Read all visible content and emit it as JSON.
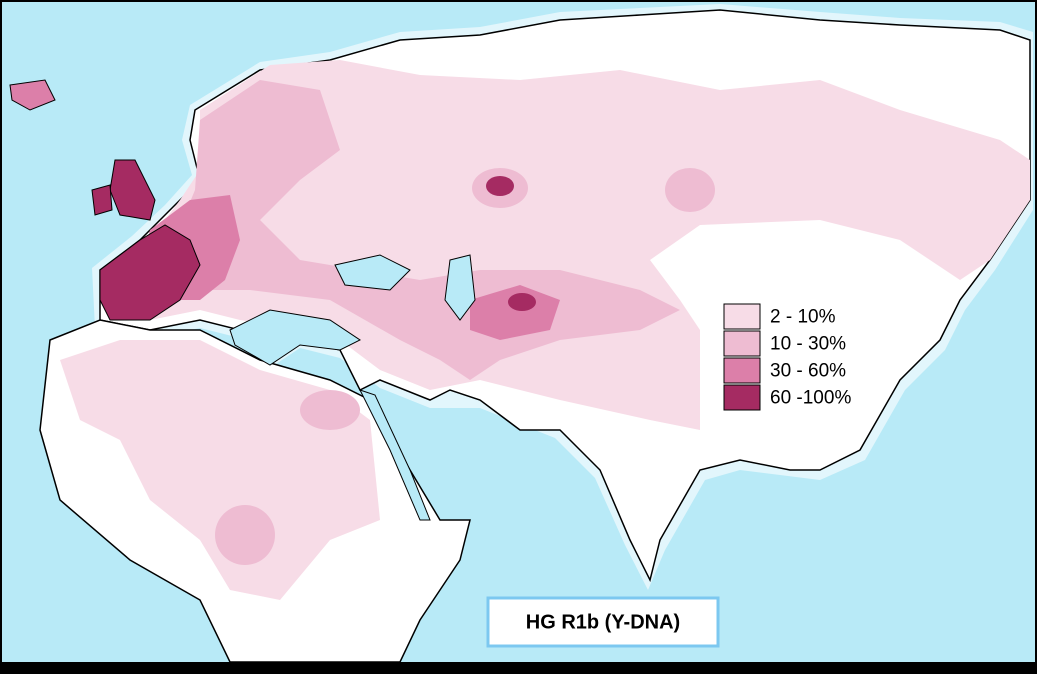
{
  "title": "HG R1b (Y-DNA)",
  "legend": {
    "items": [
      {
        "label": "2  - 10%",
        "color": "#f7dce7"
      },
      {
        "label": "10 - 30%",
        "color": "#eebcd2"
      },
      {
        "label": "30 - 60%",
        "color": "#dc7fa9"
      },
      {
        "label": "60 -100%",
        "color": "#a52b62"
      }
    ]
  }
}
